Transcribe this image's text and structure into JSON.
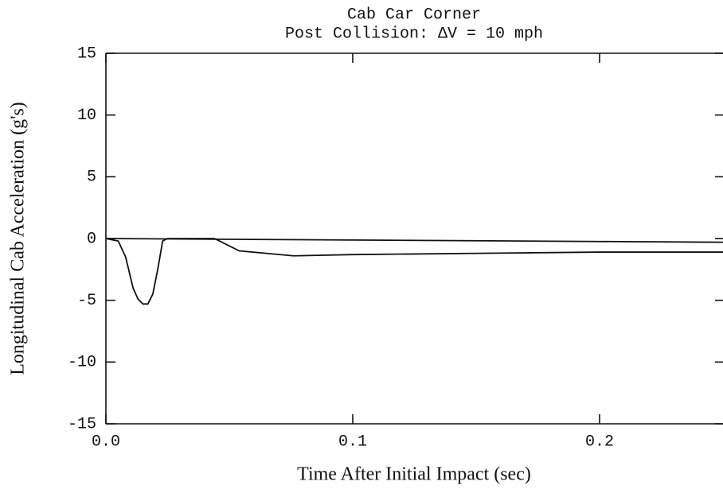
{
  "chart_data": {
    "type": "line",
    "title": [
      "Cab Car Corner",
      "Post Collision: ΔV = 10 mph"
    ],
    "x_label": "Time After Initial Impact (sec)",
    "y_label": "Longitudinal Cab Acceleration (g's)",
    "xlim": [
      0,
      0.25
    ],
    "xticks": [
      {
        "value": 0,
        "label": "0.0"
      },
      0.1,
      0.2
    ],
    "ylim": [
      -15,
      15
    ],
    "yticks": [
      -15,
      -10,
      -5,
      0,
      5,
      10,
      15
    ],
    "series": [
      {
        "color": "#111111",
        "x": [
          0,
          0.005,
          0.008,
          0.011,
          0.013,
          0.015,
          0.017,
          0.019,
          0.021,
          0.023,
          0.025,
          0.044,
          0.048,
          0.054,
          0.065,
          0.076,
          0.1,
          0.15,
          0.2,
          0.25
        ],
        "values": [
          0,
          -0.2,
          -1.5,
          -4.0,
          -4.9,
          -5.3,
          -5.3,
          -4.5,
          -2.5,
          -0.2,
          0,
          0,
          -0.4,
          -1.0,
          -1.2,
          -1.4,
          -1.3,
          -1.2,
          -1.1,
          -1.1
        ]
      },
      {
        "color": "#111111",
        "x": [
          0,
          0.1,
          0.2,
          0.25
        ],
        "values": [
          0,
          -0.12,
          -0.24,
          -0.3
        ]
      }
    ]
  }
}
